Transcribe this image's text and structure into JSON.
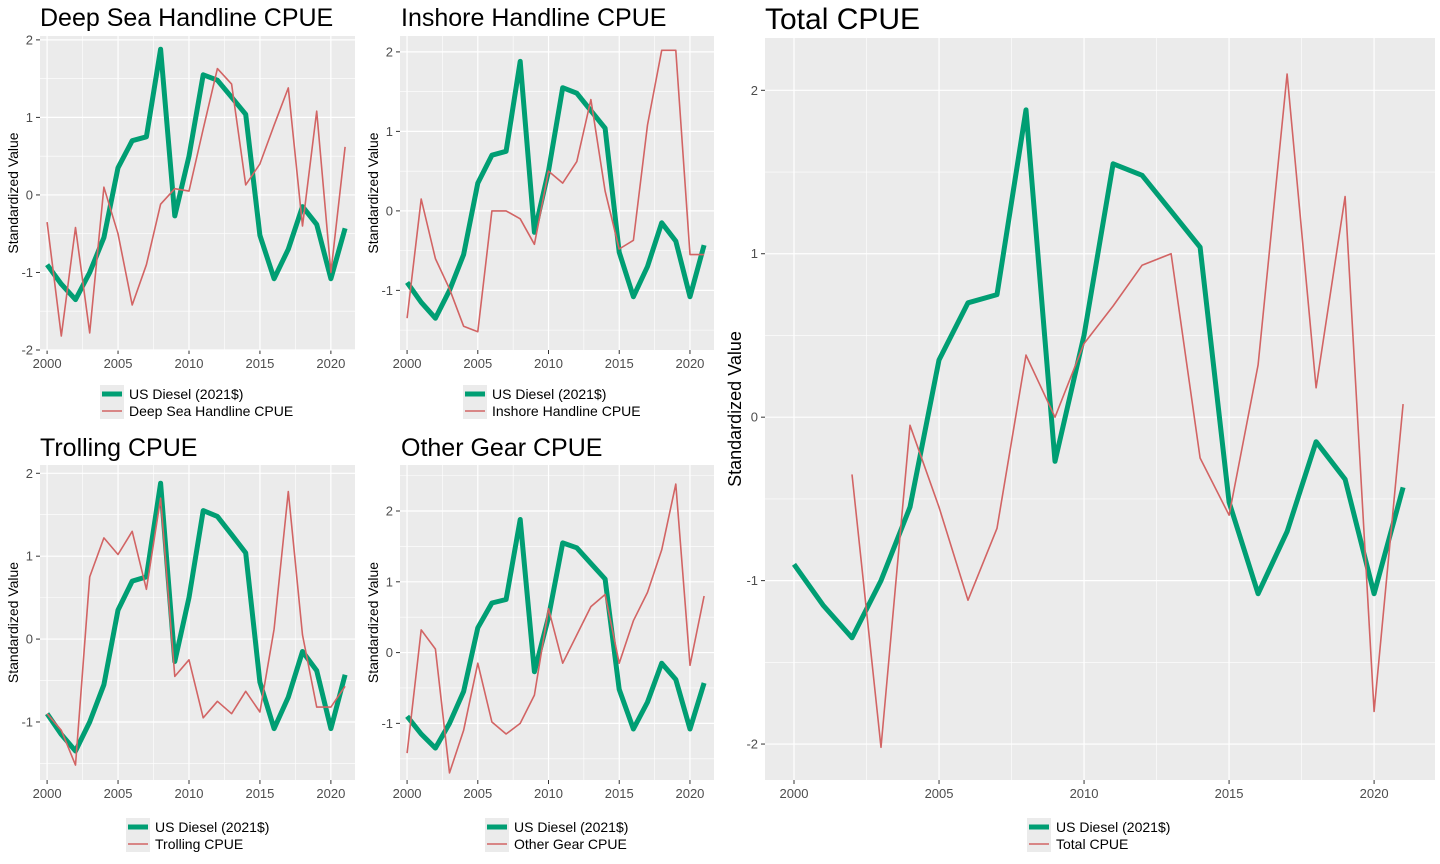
{
  "colors": {
    "panel_bg": "#ebebeb",
    "grid": "#ffffff",
    "diesel": "#009e73",
    "cpue": "#d26464",
    "tick_text": "#4d4d4d"
  },
  "shared": {
    "ylabel": "Standardized Value",
    "diesel_label": "US Diesel (2021$)"
  },
  "chart_data": [
    {
      "type": "line",
      "title": "Deep Sea Handline CPUE",
      "xlabel": "",
      "ylabel": "Standardized Value",
      "xlim": [
        1999.5,
        2021.7
      ],
      "ylim": [
        -2,
        2.05
      ],
      "x_ticks": [
        2000,
        2005,
        2010,
        2015,
        2020
      ],
      "y_ticks": [
        -2,
        -1,
        0,
        1,
        2
      ],
      "legend": "bottom",
      "series": [
        {
          "name": "US Diesel (2021$)",
          "x": [
            2000,
            2001,
            2002,
            2003,
            2004,
            2005,
            2006,
            2007,
            2008,
            2009,
            2010,
            2011,
            2012,
            2013,
            2014,
            2015,
            2016,
            2017,
            2018,
            2019,
            2020,
            2021
          ],
          "values": [
            -0.9,
            -1.15,
            -1.35,
            -1.0,
            -0.55,
            0.35,
            0.7,
            0.75,
            1.88,
            -0.27,
            0.5,
            1.55,
            1.48,
            1.26,
            1.04,
            -0.52,
            -1.08,
            -0.7,
            -0.15,
            -0.38,
            -1.08,
            -0.43
          ]
        },
        {
          "name": "Deep Sea Handline CPUE",
          "x": [
            2000,
            2001,
            2002,
            2003,
            2004,
            2005,
            2006,
            2007,
            2008,
            2009,
            2010,
            2011,
            2012,
            2013,
            2014,
            2015,
            2016,
            2017,
            2018,
            2019,
            2020,
            2021
          ],
          "values": [
            -0.35,
            -1.82,
            -0.42,
            -1.78,
            0.1,
            -0.5,
            -1.42,
            -0.9,
            -0.12,
            0.08,
            0.05,
            0.85,
            1.63,
            1.43,
            0.13,
            0.4,
            0.9,
            1.38,
            -0.4,
            1.08,
            -1.0,
            0.62
          ]
        }
      ]
    },
    {
      "type": "line",
      "title": "Inshore Handline CPUE",
      "xlabel": "",
      "ylabel": "Standardized Value",
      "xlim": [
        1999.5,
        2021.7
      ],
      "ylim": [
        -1.75,
        2.2
      ],
      "x_ticks": [
        2000,
        2005,
        2010,
        2015,
        2020
      ],
      "y_ticks": [
        -1,
        0,
        1,
        2
      ],
      "legend": "bottom",
      "series": [
        {
          "name": "US Diesel (2021$)",
          "x": [
            2000,
            2001,
            2002,
            2003,
            2004,
            2005,
            2006,
            2007,
            2008,
            2009,
            2010,
            2011,
            2012,
            2013,
            2014,
            2015,
            2016,
            2017,
            2018,
            2019,
            2020,
            2021
          ],
          "values": [
            -0.9,
            -1.15,
            -1.35,
            -1.0,
            -0.55,
            0.35,
            0.7,
            0.75,
            1.88,
            -0.27,
            0.5,
            1.55,
            1.48,
            1.26,
            1.04,
            -0.52,
            -1.08,
            -0.7,
            -0.15,
            -0.38,
            -1.08,
            -0.43
          ]
        },
        {
          "name": "Inshore Handline CPUE",
          "x": [
            2000,
            2001,
            2002,
            2003,
            2004,
            2005,
            2006,
            2007,
            2008,
            2009,
            2010,
            2011,
            2012,
            2013,
            2014,
            2015,
            2016,
            2017,
            2018,
            2019,
            2020,
            2021
          ],
          "values": [
            -1.35,
            0.15,
            -0.6,
            -0.98,
            -1.45,
            -1.52,
            0.0,
            0.0,
            -0.1,
            -0.42,
            0.5,
            0.35,
            0.62,
            1.4,
            0.25,
            -0.48,
            -0.37,
            1.08,
            2.02,
            2.02,
            -0.55,
            -0.55
          ]
        }
      ]
    },
    {
      "type": "line",
      "title": "Trolling CPUE",
      "xlabel": "",
      "ylabel": "Standardized Value",
      "xlim": [
        1999.5,
        2021.7
      ],
      "ylim": [
        -1.7,
        2.1
      ],
      "x_ticks": [
        2000,
        2005,
        2010,
        2015,
        2020
      ],
      "y_ticks": [
        -1,
        0,
        1,
        2
      ],
      "legend": "bottom",
      "series": [
        {
          "name": "US Diesel (2021$)",
          "x": [
            2000,
            2001,
            2002,
            2003,
            2004,
            2005,
            2006,
            2007,
            2008,
            2009,
            2010,
            2011,
            2012,
            2013,
            2014,
            2015,
            2016,
            2017,
            2018,
            2019,
            2020,
            2021
          ],
          "values": [
            -0.9,
            -1.15,
            -1.35,
            -1.0,
            -0.55,
            0.35,
            0.7,
            0.75,
            1.88,
            -0.27,
            0.5,
            1.55,
            1.48,
            1.26,
            1.04,
            -0.52,
            -1.08,
            -0.7,
            -0.15,
            -0.38,
            -1.08,
            -0.43
          ]
        },
        {
          "name": "Trolling CPUE",
          "x": [
            2000,
            2001,
            2002,
            2003,
            2004,
            2005,
            2006,
            2007,
            2008,
            2009,
            2010,
            2011,
            2012,
            2013,
            2014,
            2015,
            2016,
            2017,
            2018,
            2019,
            2020,
            2021
          ],
          "values": [
            -0.9,
            -1.1,
            -1.52,
            0.75,
            1.22,
            1.02,
            1.3,
            0.6,
            1.7,
            -0.45,
            -0.25,
            -0.95,
            -0.75,
            -0.9,
            -0.63,
            -0.88,
            0.12,
            1.78,
            0.05,
            -0.82,
            -0.82,
            -0.57
          ]
        }
      ]
    },
    {
      "type": "line",
      "title": "Other Gear CPUE",
      "xlabel": "",
      "ylabel": "Standardized Value",
      "xlim": [
        1999.5,
        2021.7
      ],
      "ylim": [
        -1.8,
        2.65
      ],
      "x_ticks": [
        2000,
        2005,
        2010,
        2015,
        2020
      ],
      "y_ticks": [
        -1,
        0,
        1,
        2
      ],
      "legend": "bottom",
      "series": [
        {
          "name": "US Diesel (2021$)",
          "x": [
            2000,
            2001,
            2002,
            2003,
            2004,
            2005,
            2006,
            2007,
            2008,
            2009,
            2010,
            2011,
            2012,
            2013,
            2014,
            2015,
            2016,
            2017,
            2018,
            2019,
            2020,
            2021
          ],
          "values": [
            -0.9,
            -1.15,
            -1.35,
            -1.0,
            -0.55,
            0.35,
            0.7,
            0.75,
            1.88,
            -0.27,
            0.5,
            1.55,
            1.48,
            1.26,
            1.04,
            -0.52,
            -1.08,
            -0.7,
            -0.15,
            -0.38,
            -1.08,
            -0.43
          ]
        },
        {
          "name": "Other Gear CPUE",
          "x": [
            2000,
            2001,
            2002,
            2003,
            2004,
            2005,
            2006,
            2007,
            2008,
            2009,
            2010,
            2011,
            2012,
            2013,
            2014,
            2015,
            2016,
            2017,
            2018,
            2019,
            2020,
            2021
          ],
          "values": [
            -1.42,
            0.32,
            0.05,
            -1.7,
            -1.1,
            -0.15,
            -0.98,
            -1.15,
            -1.0,
            -0.6,
            0.62,
            -0.15,
            0.25,
            0.65,
            0.82,
            -0.15,
            0.45,
            0.85,
            1.45,
            2.38,
            -0.18,
            0.8
          ]
        }
      ]
    },
    {
      "type": "line",
      "title": "Total CPUE",
      "xlabel": "",
      "ylabel": "Standardized Value",
      "xlim": [
        1999.0,
        2022.1
      ],
      "ylim": [
        -2.22,
        2.32
      ],
      "x_ticks": [
        2000,
        2005,
        2010,
        2015,
        2020
      ],
      "y_ticks": [
        -2,
        -1,
        0,
        1,
        2
      ],
      "legend": "bottom",
      "series": [
        {
          "name": "US Diesel (2021$)",
          "x": [
            2000,
            2001,
            2002,
            2003,
            2004,
            2005,
            2006,
            2007,
            2008,
            2009,
            2010,
            2011,
            2012,
            2013,
            2014,
            2015,
            2016,
            2017,
            2018,
            2019,
            2020,
            2021
          ],
          "values": [
            -0.9,
            -1.15,
            -1.35,
            -1.0,
            -0.55,
            0.35,
            0.7,
            0.75,
            1.88,
            -0.27,
            0.5,
            1.55,
            1.48,
            1.26,
            1.04,
            -0.52,
            -1.08,
            -0.7,
            -0.15,
            -0.38,
            -1.08,
            -0.43
          ]
        },
        {
          "name": "Total CPUE",
          "x": [
            2002,
            2003,
            2004,
            2005,
            2006,
            2007,
            2008,
            2009,
            2010,
            2011,
            2012,
            2013,
            2014,
            2015,
            2016,
            2017,
            2018,
            2019,
            2020,
            2021
          ],
          "values": [
            -0.35,
            -2.02,
            -0.05,
            -0.55,
            -1.12,
            -0.68,
            0.38,
            0.0,
            0.45,
            0.68,
            0.93,
            1.0,
            -0.25,
            -0.6,
            0.32,
            2.1,
            0.18,
            1.35,
            -1.8,
            0.08
          ]
        }
      ]
    }
  ]
}
